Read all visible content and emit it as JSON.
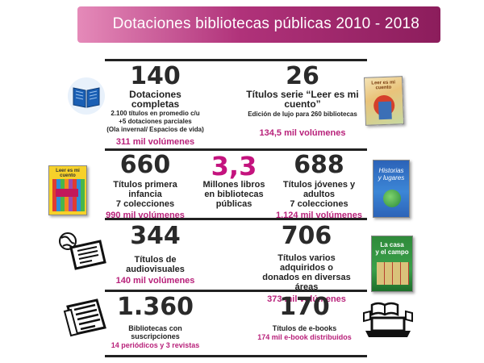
{
  "header": {
    "title": "Dotaciones bibliotecas públicas 2010 - 2018"
  },
  "colors": {
    "accent": "#b8217a",
    "header_start": "#e58ab9",
    "header_end": "#8c1d5c"
  },
  "stats": {
    "dotaciones": {
      "value": "140",
      "label": "Dotaciones  completas",
      "detail1": "2.100 títulos en promedio c/u",
      "detail2": "+5 dotaciones parciales",
      "detail3": "(Ola invernal/  Espacios de vida)",
      "volume": "311 mil volúmenes"
    },
    "leer": {
      "value": "26",
      "label1": "Títulos serie “Leer es mi",
      "label2": "cuento”",
      "detail": "Edición de lujo  para 260 bibliotecas",
      "volume": "134,5 mil volúmenes"
    },
    "infancia": {
      "value": "660",
      "label1": "Títulos primera infancia",
      "label2": "7 colecciones",
      "volume": "990 mil volúmenes"
    },
    "millones": {
      "value": "3,3",
      "label1": "Millones libros",
      "label2": "en bibliotecas",
      "label3": "públicas"
    },
    "jovenes": {
      "value": "688",
      "label1": "Títulos jóvenes y adultos",
      "label2": "7 colecciones",
      "volume": "1.124 mil volúmenes"
    },
    "audiovisuales": {
      "value": "344",
      "label": "Títulos de audiovisuales",
      "volume": "140 mil volúmenes"
    },
    "varios": {
      "value": "706",
      "label1": "Títulos varios adquiridos o",
      "label2": "donados en diversas áreas",
      "volume": "373 mil volúmenes"
    },
    "suscripciones": {
      "value": "1.360",
      "label": "Bibliotecas con suscripciones",
      "volume": "14 periódicos y 3 revistas"
    },
    "ebooks": {
      "value": "170",
      "label": "Títulos de e-books",
      "volume": "174  mil e-book distribuidos"
    }
  },
  "icons": [
    "open-book-icon",
    "book-cover-leer-icon",
    "book-cover-infancia-icon",
    "book-cover-historias-icon",
    "globe-newspaper-icon",
    "book-cover-casa-icon",
    "newspaper-icon",
    "laptop-ebook-icon"
  ],
  "covers": {
    "leer_title": "Leer es mi cuento",
    "infancia_title": "Leer es mi cuento",
    "historias_title1": "Historias",
    "historias_title2": "y lugares",
    "casa_title1": "La casa",
    "casa_title2": "y el campo"
  }
}
